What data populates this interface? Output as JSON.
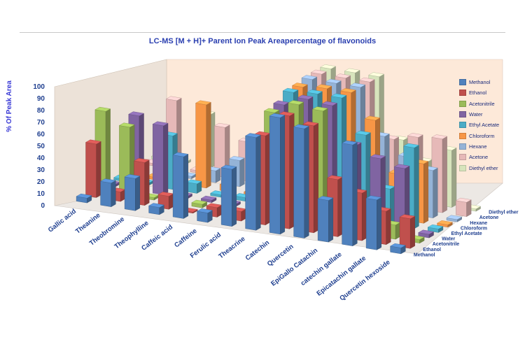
{
  "chart_data": {
    "type": "bar",
    "title": "LC-MS [M + H]+ Parent Ion Peak Areapercentage of flavonoids",
    "ylabel": "% Of Peak Area",
    "ylim": [
      0,
      100
    ],
    "yticks": [
      "0",
      "10",
      "20",
      "30",
      "40",
      "50",
      "60",
      "70",
      "80",
      "90",
      "100"
    ],
    "categories": [
      "Gallic acid",
      "Theanine",
      "Theobromine",
      "Theophylline",
      "Caffeic acid",
      "Caffeine",
      "Ferulic acid",
      "Theacrine",
      "Catechin",
      "Quercetin",
      "EpiGallo Catachin",
      "catechin gallate",
      "Epicatachin gallate",
      "Quercetin hexoside"
    ],
    "series": [
      {
        "name": "Methanol",
        "color": "#4f81bd",
        "values": [
          4,
          20,
          27,
          6,
          52,
          8,
          48,
          78,
          98,
          92,
          35,
          85,
          42,
          5
        ]
      },
      {
        "name": "Ethanol",
        "color": "#c0504d",
        "values": [
          45,
          8,
          36,
          11,
          1,
          8,
          8,
          75,
          95,
          90,
          48,
          40,
          28,
          25
        ]
      },
      {
        "name": "Acetonitrile",
        "color": "#9bbb59",
        "values": [
          68,
          58,
          2,
          2,
          3,
          2,
          2,
          90,
          100,
          98,
          33,
          12,
          12,
          3
        ]
      },
      {
        "name": "Water",
        "color": "#8064a2",
        "values": [
          2,
          63,
          58,
          2,
          2,
          2,
          2,
          92,
          100,
          98,
          68,
          60,
          55,
          3
        ]
      },
      {
        "name": "Ethyl Acetate",
        "color": "#4bacc6",
        "values": [
          2,
          2,
          45,
          8,
          2,
          3,
          3,
          98,
          100,
          100,
          72,
          30,
          68,
          3
        ]
      },
      {
        "name": "Chloroform",
        "color": "#f79646",
        "values": [
          2,
          2,
          2,
          70,
          5,
          2,
          2,
          98,
          100,
          100,
          80,
          38,
          50,
          2
        ]
      },
      {
        "name": "Hexane",
        "color": "#95b3d7",
        "values": [
          2,
          2,
          2,
          10,
          22,
          8,
          2,
          100,
          100,
          100,
          62,
          48,
          40,
          2
        ]
      },
      {
        "name": "Acetone",
        "color": "#e6b9b8",
        "values": [
          2,
          58,
          2,
          42,
          33,
          15,
          2,
          100,
          100,
          100,
          55,
          60,
          62,
          12
        ]
      },
      {
        "name": "Diethyl ether",
        "color": "#d7e4bc",
        "values": [
          2,
          2,
          45,
          2,
          32,
          10,
          2,
          100,
          100,
          100,
          50,
          35,
          48,
          2
        ]
      }
    ],
    "depth_labels": [
      "Methanol",
      "Ethanol",
      "Acetonitrile",
      "Water",
      "Ethyl Acetate",
      "Chloroform",
      "Hexane",
      "Acetone",
      "Diethyl ether"
    ],
    "legend_position": "right",
    "grid": false,
    "projection": "3d-column"
  }
}
